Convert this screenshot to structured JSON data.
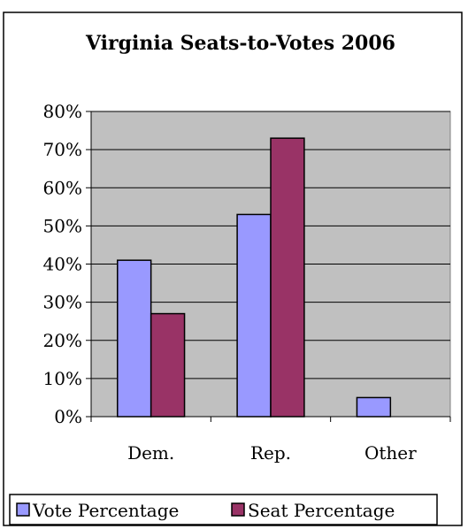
{
  "chart_data": {
    "type": "bar",
    "title": "Virginia Seats-to-Votes 2006",
    "xlabel": "",
    "ylabel": "",
    "categories": [
      "Dem.",
      "Rep.",
      "Other"
    ],
    "series": [
      {
        "name": "Vote Percentage",
        "values": [
          41,
          53,
          5
        ],
        "color": "#9999ff"
      },
      {
        "name": "Seat Percentage",
        "values": [
          27,
          73,
          0
        ],
        "color": "#993366"
      }
    ],
    "ylim": [
      0,
      80
    ],
    "yticks": [
      0,
      10,
      20,
      30,
      40,
      50,
      60,
      70,
      80
    ],
    "ytick_labels": [
      "0%",
      "10%",
      "20%",
      "30%",
      "40%",
      "50%",
      "60%",
      "70%",
      "80%"
    ],
    "grid": true,
    "plot_background": "#c0c0c0",
    "legend_position": "bottom"
  }
}
